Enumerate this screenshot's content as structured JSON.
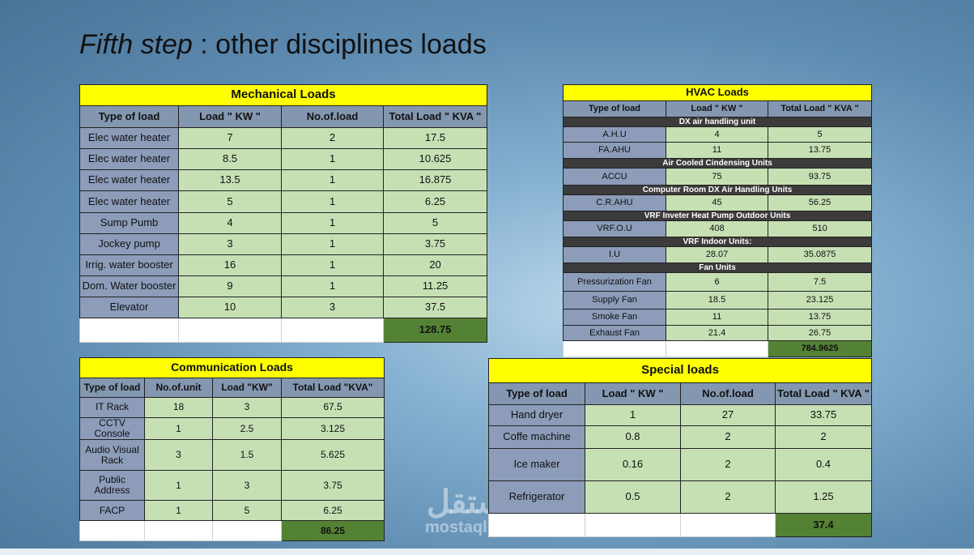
{
  "title": {
    "italic": "Fifth step",
    "rest": " : other disciplines loads"
  },
  "mechanical": {
    "title": "Mechanical Loads",
    "headers": [
      "Type of load",
      "Load \" KW \"",
      "No.of.load",
      "Total Load \" KVA \""
    ],
    "rows": [
      [
        "Elec water heater",
        "7",
        "2",
        "17.5"
      ],
      [
        "Elec water heater",
        "8.5",
        "1",
        "10.625"
      ],
      [
        "Elec water heater",
        "13.5",
        "1",
        "16.875"
      ],
      [
        "Elec water heater",
        "5",
        "1",
        "6.25"
      ],
      [
        "Sump Pumb",
        "4",
        "1",
        "5"
      ],
      [
        "Jockey pump",
        "3",
        "1",
        "3.75"
      ],
      [
        "Irrig. water booster",
        "16",
        "1",
        "20"
      ],
      [
        "Dom. Water booster",
        "9",
        "1",
        "11.25"
      ],
      [
        "Elevator",
        "10",
        "3",
        "37.5"
      ]
    ],
    "total": "128.75"
  },
  "hvac": {
    "title": "HVAC Loads",
    "headers": [
      "Type of load",
      "Load \" KW \"",
      "Total Load \" KVA \""
    ],
    "sections": [
      {
        "heading": "DX air handling unit",
        "rows": [
          [
            "A.H.U",
            "4",
            "5"
          ],
          [
            "FA.AHU",
            "11",
            "13.75"
          ]
        ]
      },
      {
        "heading": "Air Cooled Cindensing Units",
        "rows": [
          [
            "ACCU",
            "75",
            "93.75"
          ]
        ]
      },
      {
        "heading": "Computer Room DX Air Handling Units",
        "rows": [
          [
            "C.R.AHU",
            "45",
            "56.25"
          ]
        ]
      },
      {
        "heading": "VRF Inveter Heat Pump Outdoor Units",
        "rows": [
          [
            "VRF.O.U",
            "408",
            "510"
          ]
        ]
      },
      {
        "heading": "VRF Indoor Units:",
        "rows": [
          [
            "I.U",
            "28.07",
            "35.0875"
          ]
        ]
      },
      {
        "heading": "Fan Units",
        "rows": [
          [
            "Pressurization Fan",
            "6",
            "7.5"
          ],
          [
            "Supply Fan",
            "18.5",
            "23.125"
          ],
          [
            "Smoke Fan",
            "11",
            "13.75"
          ],
          [
            "Exhaust Fan",
            "21.4",
            "26.75"
          ]
        ]
      }
    ],
    "total": "784.9625"
  },
  "communication": {
    "title": "Communication Loads",
    "headers": [
      "Type of load",
      "No.of.unit",
      "Load \"KW\"",
      "Total Load \"KVA\""
    ],
    "rows": [
      [
        "IT Rack",
        "18",
        "3",
        "67.5"
      ],
      [
        "CCTV Console",
        "1",
        "2.5",
        "3.125"
      ],
      [
        "Audio Visual Rack",
        "3",
        "1.5",
        "5.625"
      ],
      [
        "Public Address",
        "1",
        "3",
        "3.75"
      ],
      [
        "FACP",
        "1",
        "5",
        "6.25"
      ]
    ],
    "total": "86.25"
  },
  "special": {
    "title": "Special loads",
    "headers": [
      "Type of load",
      "Load \" KW \"",
      "No.of.load",
      "Total Load \" KVA \""
    ],
    "rows": [
      [
        "Hand dryer",
        "1",
        "27",
        "33.75"
      ],
      [
        "Coffe machine",
        "0.8",
        "2",
        "2"
      ],
      [
        "Ice maker",
        "0.16",
        "2",
        "0.4"
      ],
      [
        "Refrigerator",
        "0.5",
        "2",
        "1.25"
      ]
    ],
    "total": "37.4"
  },
  "watermark": {
    "arabic": "مستقل",
    "latin": "mostaql.com"
  }
}
